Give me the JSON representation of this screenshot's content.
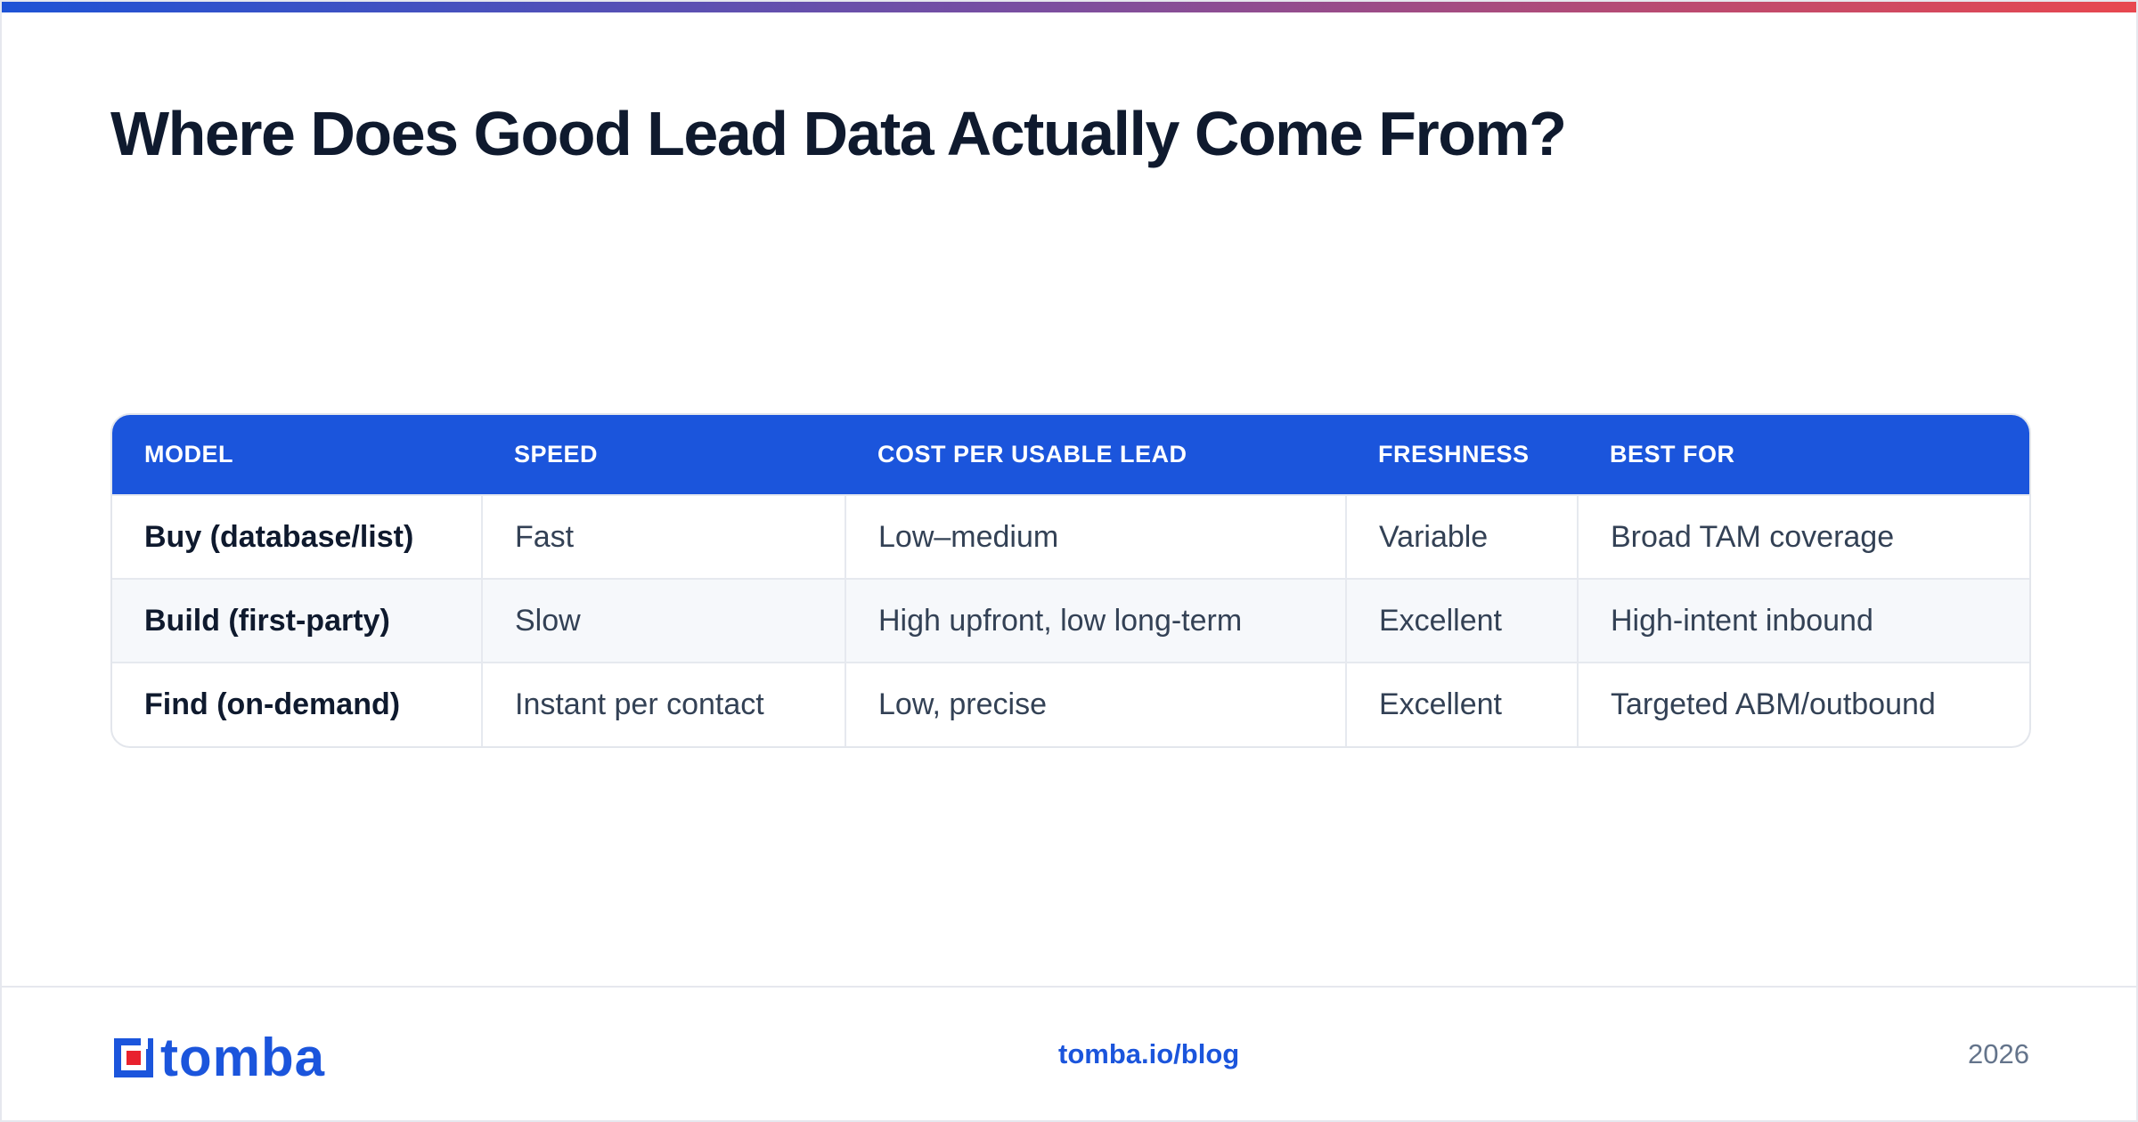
{
  "title": "Where Does Good Lead Data Actually Come From?",
  "colors": {
    "accent": "#1b55dc",
    "gradient_start": "#1e53d6",
    "gradient_end": "#e8484f",
    "logo_red": "#e8212e"
  },
  "table": {
    "headers": [
      "MODEL",
      "SPEED",
      "COST PER USABLE LEAD",
      "FRESHNESS",
      "BEST FOR"
    ],
    "rows": [
      [
        "Buy (database/list)",
        "Fast",
        "Low–medium",
        "Variable",
        "Broad TAM coverage"
      ],
      [
        "Build (first-party)",
        "Slow",
        "High upfront, low long-term",
        "Excellent",
        "High-intent inbound"
      ],
      [
        "Find (on-demand)",
        "Instant per contact",
        "Low, precise",
        "Excellent",
        "Targeted ABM/outbound"
      ]
    ]
  },
  "footer": {
    "logo_text": "tomba",
    "link": "tomba.io/blog",
    "year": "2026"
  }
}
